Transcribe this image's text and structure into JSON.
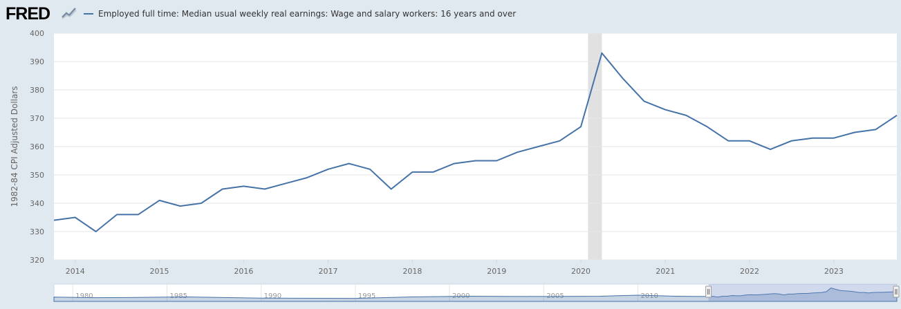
{
  "brand": {
    "logo_text": "FRED",
    "logo_icon": "chart-line-icon"
  },
  "chart_data": {
    "type": "line",
    "series": [
      {
        "name": "Employed full time: Median usual weekly real earnings: Wage and salary workers: 16 years and over",
        "color": "#4572a7",
        "x": [
          "2013-10-01",
          "2014-01-01",
          "2014-04-01",
          "2014-07-01",
          "2014-10-01",
          "2015-01-01",
          "2015-04-01",
          "2015-07-01",
          "2015-10-01",
          "2016-01-01",
          "2016-04-01",
          "2016-07-01",
          "2016-10-01",
          "2017-01-01",
          "2017-04-01",
          "2017-07-01",
          "2017-10-01",
          "2018-01-01",
          "2018-04-01",
          "2018-07-01",
          "2018-10-01",
          "2019-01-01",
          "2019-04-01",
          "2019-07-01",
          "2019-10-01",
          "2020-01-01",
          "2020-04-01",
          "2020-07-01",
          "2020-10-01",
          "2021-01-01",
          "2021-04-01",
          "2021-07-01",
          "2021-10-01",
          "2022-01-01",
          "2022-04-01",
          "2022-07-01",
          "2022-10-01",
          "2023-01-01",
          "2023-04-01",
          "2023-07-01",
          "2023-10-01"
        ],
        "values": [
          334,
          335,
          330,
          336,
          336,
          341,
          339,
          340,
          345,
          346,
          345,
          347,
          349,
          352,
          354,
          352,
          345,
          351,
          351,
          354,
          355,
          355,
          358,
          360,
          362,
          367,
          393,
          384,
          376,
          373,
          371,
          367,
          362,
          362,
          359,
          362,
          363,
          363,
          365,
          366,
          371
        ]
      }
    ],
    "ylabel": "1982-84 CPI Adjusted Dollars",
    "ylim": [
      320,
      400
    ],
    "yticks": [
      320,
      330,
      340,
      350,
      360,
      370,
      380,
      390,
      400
    ],
    "xlim": [
      "2013-10-01",
      "2023-10-01"
    ],
    "xticks": [
      "2014",
      "2015",
      "2016",
      "2017",
      "2018",
      "2019",
      "2020",
      "2021",
      "2022",
      "2023"
    ],
    "recession": {
      "start": "2020-02-01",
      "end": "2020-04-01",
      "color": "#e1e1e1"
    },
    "grid": true,
    "navigator": {
      "labels": [
        "1980",
        "1985",
        "1990",
        "1995",
        "2000",
        "2005",
        "2010"
      ],
      "range": [
        "1979-01-01",
        "2023-10-01"
      ],
      "selected": [
        "2013-10-01",
        "2023-10-01"
      ]
    }
  }
}
